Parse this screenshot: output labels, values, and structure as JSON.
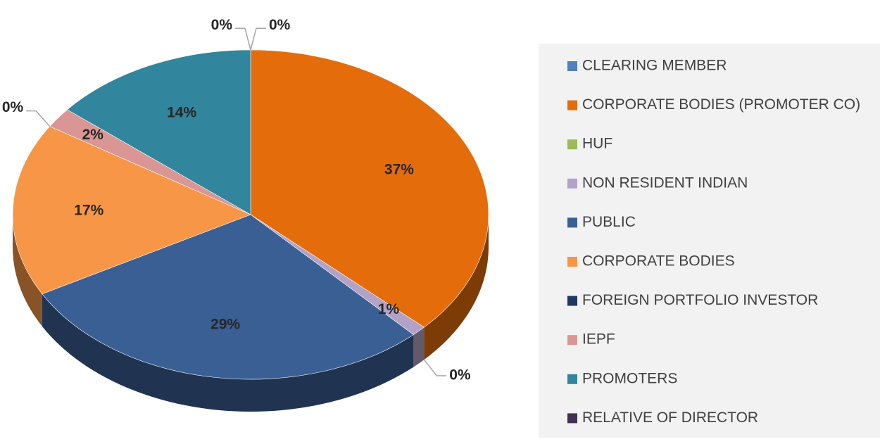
{
  "chart_data": {
    "type": "pie",
    "categories": [
      "CLEARING MEMBER",
      "CORPORATE BODIES (PROMOTER CO)",
      "HUF",
      "NON RESIDENT INDIAN",
      "PUBLIC",
      "CORPORATE BODIES",
      "FOREIGN PORTFOLIO INVESTOR",
      "IEPF",
      "PROMOTERS",
      "RELATIVE OF DIRECTOR"
    ],
    "values": [
      0,
      37,
      0,
      1,
      29,
      17,
      0,
      2,
      14,
      0
    ],
    "value_labels": [
      "0%",
      "37%",
      "0%",
      "1%",
      "29%",
      "17%",
      "0%",
      "2%",
      "14%",
      "0%"
    ],
    "colors": [
      "#4f81bd",
      "#e46c0a",
      "#9bbb59",
      "#b3a2c7",
      "#3a5f95",
      "#f79646",
      "#1f3864",
      "#d99694",
      "#31859c",
      "#403152"
    ],
    "legend": "right"
  }
}
